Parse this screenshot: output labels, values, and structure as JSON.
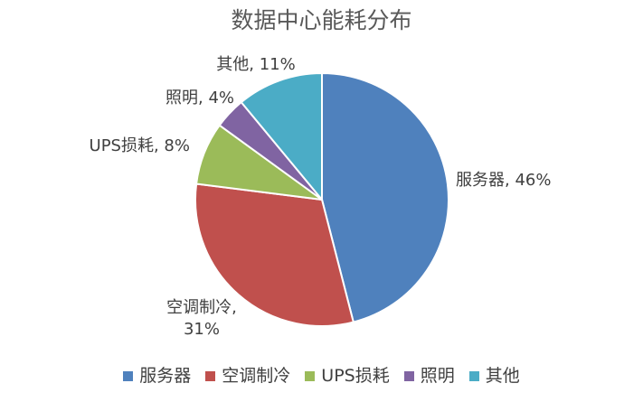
{
  "chart_data": {
    "type": "pie",
    "title": "数据中心能耗分布",
    "categories": [
      "服务器",
      "空调制冷",
      "UPS损耗",
      "照明",
      "其他"
    ],
    "values": [
      46,
      31,
      8,
      4,
      11
    ],
    "unit": "%",
    "data_labels": [
      "服务器, 46%",
      "空调制冷, 31%",
      "UPS损耗, 8%",
      "照明, 4%",
      "其他, 11%"
    ],
    "colors": [
      "#4f81bd",
      "#c0504d",
      "#9bbb59",
      "#8064a2",
      "#4bacc6"
    ],
    "start_angle": "12 o'clock",
    "direction": "clockwise",
    "legend": "bottom"
  }
}
